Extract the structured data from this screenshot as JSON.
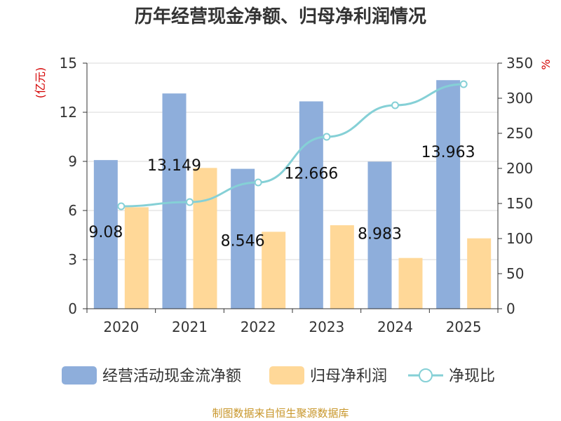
{
  "chart_data": {
    "type": "bar",
    "title": "历年经营现金净额、归母净利润情况",
    "categories": [
      "2020",
      "2021",
      "2022",
      "2023",
      "2024",
      "2025"
    ],
    "series": [
      {
        "name": "经营活动现金流净额",
        "axis": "left",
        "color": "#8eaedb",
        "values": [
          9.08,
          13.149,
          8.546,
          12.666,
          8.983,
          13.963
        ]
      },
      {
        "name": "归母净利润",
        "axis": "left",
        "color": "#ffd898",
        "values": [
          6.2,
          8.6,
          4.7,
          5.1,
          3.1,
          4.3
        ]
      },
      {
        "name": "净现比",
        "axis": "right",
        "type": "line",
        "color": "#85d0d6",
        "values": [
          146,
          152,
          180,
          245,
          290,
          320
        ]
      }
    ],
    "data_labels": [
      "9.08",
      "13.149",
      "8.546",
      "12.666",
      "8.983",
      "13.963"
    ],
    "left_axis": {
      "unit": "(亿元)",
      "ylim": [
        0,
        15
      ],
      "ticks": [
        "0",
        "3",
        "6",
        "9",
        "12",
        "15"
      ]
    },
    "right_axis": {
      "unit": "%",
      "ylim": [
        0,
        350
      ],
      "ticks": [
        "0",
        "50",
        "100",
        "150",
        "200",
        "250",
        "300",
        "350"
      ]
    },
    "legend": [
      {
        "label": "经营活动现金流净额",
        "symbol": "bar",
        "color": "#8eaedb"
      },
      {
        "label": "归母净利润",
        "symbol": "bar",
        "color": "#ffd898"
      },
      {
        "label": "净现比",
        "symbol": "line",
        "color": "#85d0d6"
      }
    ],
    "legend_position": "bottom",
    "grid": true
  },
  "source": "制图数据来自恒生聚源数据库"
}
